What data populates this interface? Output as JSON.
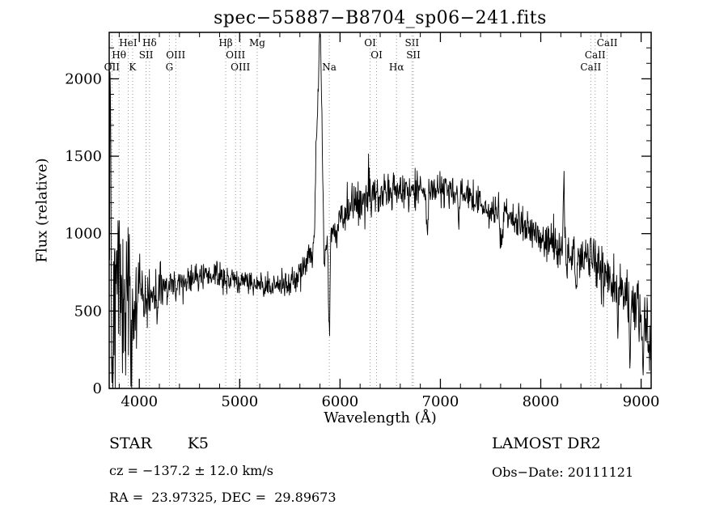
{
  "title": "spec−55887−B8704_sp06−241.fits",
  "chart_data": {
    "type": "line",
    "title": "spec−55887−B8704_sp06−241.fits",
    "xlabel": "Wavelength (Å)",
    "ylabel": "Flux (relative)",
    "xlim": [
      3700,
      9100
    ],
    "ylim": [
      0,
      2300
    ],
    "x_ticks": [
      4000,
      5000,
      6000,
      7000,
      8000,
      9000
    ],
    "y_ticks": [
      0,
      500,
      1000,
      1500,
      2000
    ],
    "x_minor_step": 200,
    "y_minor_step": 100,
    "grid": false,
    "legend": "none",
    "line_color": "#000000",
    "marker_line_color": "#999999",
    "background": "#ffffff",
    "line_markers": [
      {
        "label": "OII",
        "wavelength": 3727,
        "row": 3
      },
      {
        "label": "Hθ",
        "wavelength": 3798,
        "row": 2
      },
      {
        "label": "HeI",
        "wavelength": 3889,
        "row": 1
      },
      {
        "label": "K",
        "wavelength": 3933,
        "row": 3
      },
      {
        "label": "SII",
        "wavelength": 4068,
        "row": 2
      },
      {
        "label": "Hδ",
        "wavelength": 4102,
        "row": 1
      },
      {
        "label": "G",
        "wavelength": 4300,
        "row": 3
      },
      {
        "label": "OIII",
        "wavelength": 4363,
        "row": 2
      },
      {
        "label": "Hβ",
        "wavelength": 4861,
        "row": 1
      },
      {
        "label": "OIII",
        "wavelength": 4959,
        "row": 2
      },
      {
        "label": "OIII",
        "wavelength": 5007,
        "row": 3
      },
      {
        "label": "Mg",
        "wavelength": 5175,
        "row": 1
      },
      {
        "label": "Na",
        "wavelength": 5893,
        "row": 3
      },
      {
        "label": "OI",
        "wavelength": 6300,
        "row": 1
      },
      {
        "label": "OI",
        "wavelength": 6364,
        "row": 2
      },
      {
        "label": "Hα",
        "wavelength": 6563,
        "row": 3
      },
      {
        "label": "SII",
        "wavelength": 6717,
        "row": 1
      },
      {
        "label": "SII",
        "wavelength": 6731,
        "row": 2
      },
      {
        "label": "CaII",
        "wavelength": 8498,
        "row": 3
      },
      {
        "label": "CaII",
        "wavelength": 8542,
        "row": 2
      },
      {
        "label": "CaII",
        "wavelength": 8662,
        "row": 1
      }
    ],
    "spectrum": {
      "seed": 42,
      "sample_step": 4,
      "continuum": [
        [
          3700,
          750
        ],
        [
          3760,
          620
        ],
        [
          3850,
          600
        ],
        [
          3950,
          555
        ],
        [
          4050,
          580
        ],
        [
          4200,
          630
        ],
        [
          4350,
          665
        ],
        [
          4500,
          700
        ],
        [
          4650,
          725
        ],
        [
          4800,
          720
        ],
        [
          4950,
          705
        ],
        [
          5100,
          690
        ],
        [
          5250,
          660
        ],
        [
          5400,
          665
        ],
        [
          5550,
          705
        ],
        [
          5650,
          790
        ],
        [
          5720,
          900
        ],
        [
          5770,
          1000
        ],
        [
          5810,
          990
        ],
        [
          5850,
          930
        ],
        [
          5920,
          990
        ],
        [
          6000,
          1100
        ],
        [
          6150,
          1200
        ],
        [
          6300,
          1230
        ],
        [
          6450,
          1255
        ],
        [
          6600,
          1270
        ],
        [
          6750,
          1290
        ],
        [
          6900,
          1275
        ],
        [
          7050,
          1290
        ],
        [
          7200,
          1255
        ],
        [
          7350,
          1205
        ],
        [
          7500,
          1160
        ],
        [
          7650,
          1115
        ],
        [
          7800,
          1060
        ],
        [
          7950,
          990
        ],
        [
          8100,
          930
        ],
        [
          8250,
          885
        ],
        [
          8400,
          840
        ],
        [
          8550,
          795
        ],
        [
          8700,
          700
        ],
        [
          8850,
          600
        ],
        [
          8950,
          520
        ],
        [
          9050,
          430
        ],
        [
          9100,
          340
        ]
      ],
      "noise_amplitude": [
        [
          3700,
          420
        ],
        [
          3780,
          320
        ],
        [
          3880,
          230
        ],
        [
          3980,
          150
        ],
        [
          4100,
          90
        ],
        [
          4300,
          55
        ],
        [
          4600,
          45
        ],
        [
          5000,
          45
        ],
        [
          5400,
          40
        ],
        [
          5700,
          45
        ],
        [
          6000,
          75
        ],
        [
          6300,
          70
        ],
        [
          6600,
          65
        ],
        [
          7000,
          60
        ],
        [
          7400,
          55
        ],
        [
          7800,
          60
        ],
        [
          8100,
          70
        ],
        [
          8400,
          75
        ],
        [
          8700,
          85
        ],
        [
          9000,
          110
        ],
        [
          9100,
          130
        ]
      ],
      "features": [
        [
          3712,
          1350,
          5
        ],
        [
          3732,
          -520,
          5
        ],
        [
          3800,
          420,
          4
        ],
        [
          3920,
          -470,
          6
        ],
        [
          4180,
          -180,
          5
        ],
        [
          5765,
          480,
          10
        ],
        [
          5800,
          1300,
          18
        ],
        [
          5845,
          -240,
          6
        ],
        [
          5893,
          -600,
          7
        ],
        [
          6283,
          170,
          5
        ],
        [
          6868,
          -210,
          10
        ],
        [
          7186,
          -150,
          8
        ],
        [
          7605,
          -170,
          10
        ],
        [
          8230,
          430,
          6
        ],
        [
          8355,
          -200,
          6
        ],
        [
          8770,
          -320,
          7
        ],
        [
          8890,
          -380,
          7
        ],
        [
          9020,
          -200,
          6
        ],
        [
          9085,
          -280,
          6
        ]
      ]
    }
  },
  "footer": {
    "object_class": "STAR",
    "subclass": "K5",
    "survey": "LAMOST DR2",
    "cz_text": "cz = −137.2 ± 12.0 km/s",
    "obs_date_text": "Obs−Date: 20111121",
    "radec_text": "RA =  23.97325, DEC =  29.89673"
  }
}
